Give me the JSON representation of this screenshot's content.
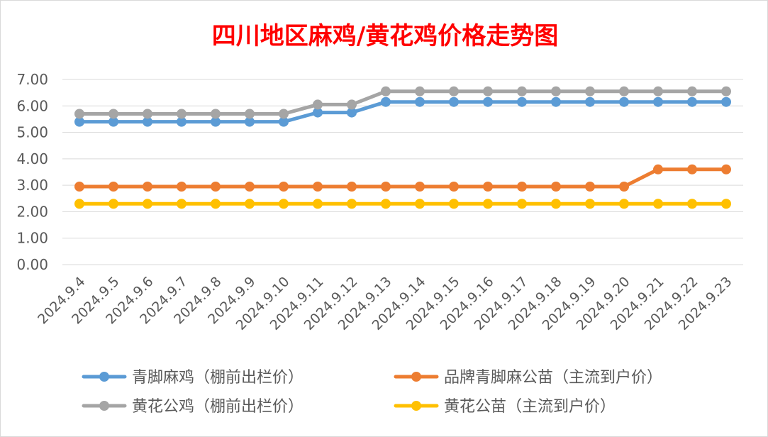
{
  "chart_data": {
    "type": "line",
    "title": "四川地区麻鸡/黄花鸡价格走势图",
    "xlabel": "",
    "ylabel": "",
    "ylim": [
      0,
      7
    ],
    "yticks": [
      0,
      1,
      2,
      3,
      4,
      5,
      6,
      7
    ],
    "ytick_labels": [
      "0.00",
      "1.00",
      "2.00",
      "3.00",
      "4.00",
      "5.00",
      "6.00",
      "7.00"
    ],
    "grid": true,
    "legend_position": "bottom",
    "categories": [
      "2024.9.4",
      "2024.9.5",
      "2024.9.6",
      "2024.9.7",
      "2024.9.8",
      "2024.9.9",
      "2024.9.10",
      "2024.9.11",
      "2024.9.12",
      "2024.9.13",
      "2024.9.14",
      "2024.9.15",
      "2024.9.16",
      "2024.9.17",
      "2024.9.18",
      "2024.9.19",
      "2024.9.20",
      "2024.9.21",
      "2024.9.22",
      "2024.9.23"
    ],
    "series": [
      {
        "name": "青脚麻鸡（棚前出栏价）",
        "color": "#5b9bd5",
        "values": [
          5.4,
          5.4,
          5.4,
          5.4,
          5.4,
          5.4,
          5.4,
          5.75,
          5.75,
          6.15,
          6.15,
          6.15,
          6.15,
          6.15,
          6.15,
          6.15,
          6.15,
          6.15,
          6.15,
          6.15
        ]
      },
      {
        "name": "品牌青脚麻公苗（主流到户价）",
        "color": "#ed7d31",
        "values": [
          2.95,
          2.95,
          2.95,
          2.95,
          2.95,
          2.95,
          2.95,
          2.95,
          2.95,
          2.95,
          2.95,
          2.95,
          2.95,
          2.95,
          2.95,
          2.95,
          2.95,
          3.6,
          3.6,
          3.6
        ]
      },
      {
        "name": "黄花公鸡（棚前出栏价）",
        "color": "#a5a5a5",
        "values": [
          5.7,
          5.7,
          5.7,
          5.7,
          5.7,
          5.7,
          5.7,
          6.05,
          6.05,
          6.55,
          6.55,
          6.55,
          6.55,
          6.55,
          6.55,
          6.55,
          6.55,
          6.55,
          6.55,
          6.55
        ]
      },
      {
        "name": "黄花公苗（主流到户价）",
        "color": "#ffc000",
        "values": [
          2.3,
          2.3,
          2.3,
          2.3,
          2.3,
          2.3,
          2.3,
          2.3,
          2.3,
          2.3,
          2.3,
          2.3,
          2.3,
          2.3,
          2.3,
          2.3,
          2.3,
          2.3,
          2.3,
          2.3
        ]
      }
    ]
  }
}
